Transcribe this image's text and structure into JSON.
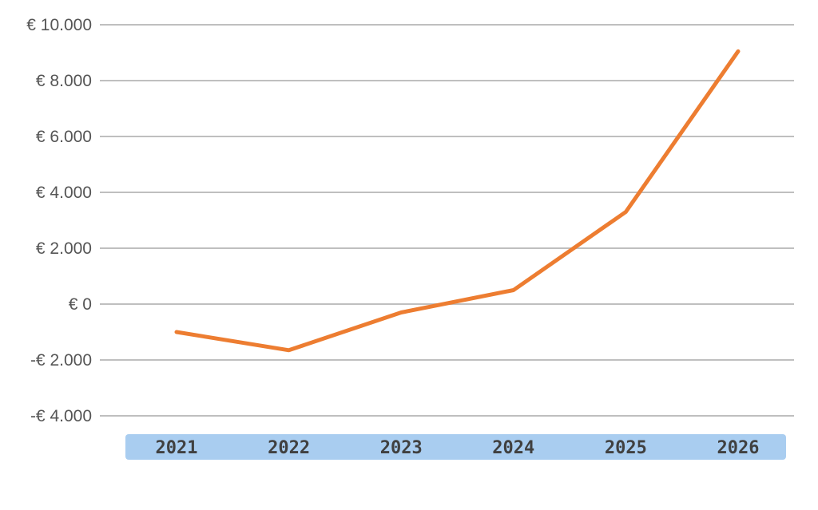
{
  "chart_data": {
    "type": "line",
    "categories": [
      "2021",
      "2022",
      "2023",
      "2024",
      "2025",
      "2026"
    ],
    "series": [
      {
        "values": [
          -1000,
          -1650,
          -300,
          500,
          3300,
          9050
        ],
        "color": "#ed7d31"
      }
    ],
    "ylim": [
      -4000,
      10000
    ],
    "y_ticks": [
      10000,
      8000,
      6000,
      4000,
      2000,
      0,
      -2000,
      -4000
    ],
    "y_tick_labels": [
      "€ 10.000",
      "€ 8.000",
      "€ 6.000",
      "€ 4.000",
      "€ 2.000",
      "€ 0",
      "-€ 2.000",
      "-€ 4.000"
    ],
    "grid": true,
    "category_band_color": "#a9cdf0",
    "gridline_color": "#bfbfbf"
  }
}
